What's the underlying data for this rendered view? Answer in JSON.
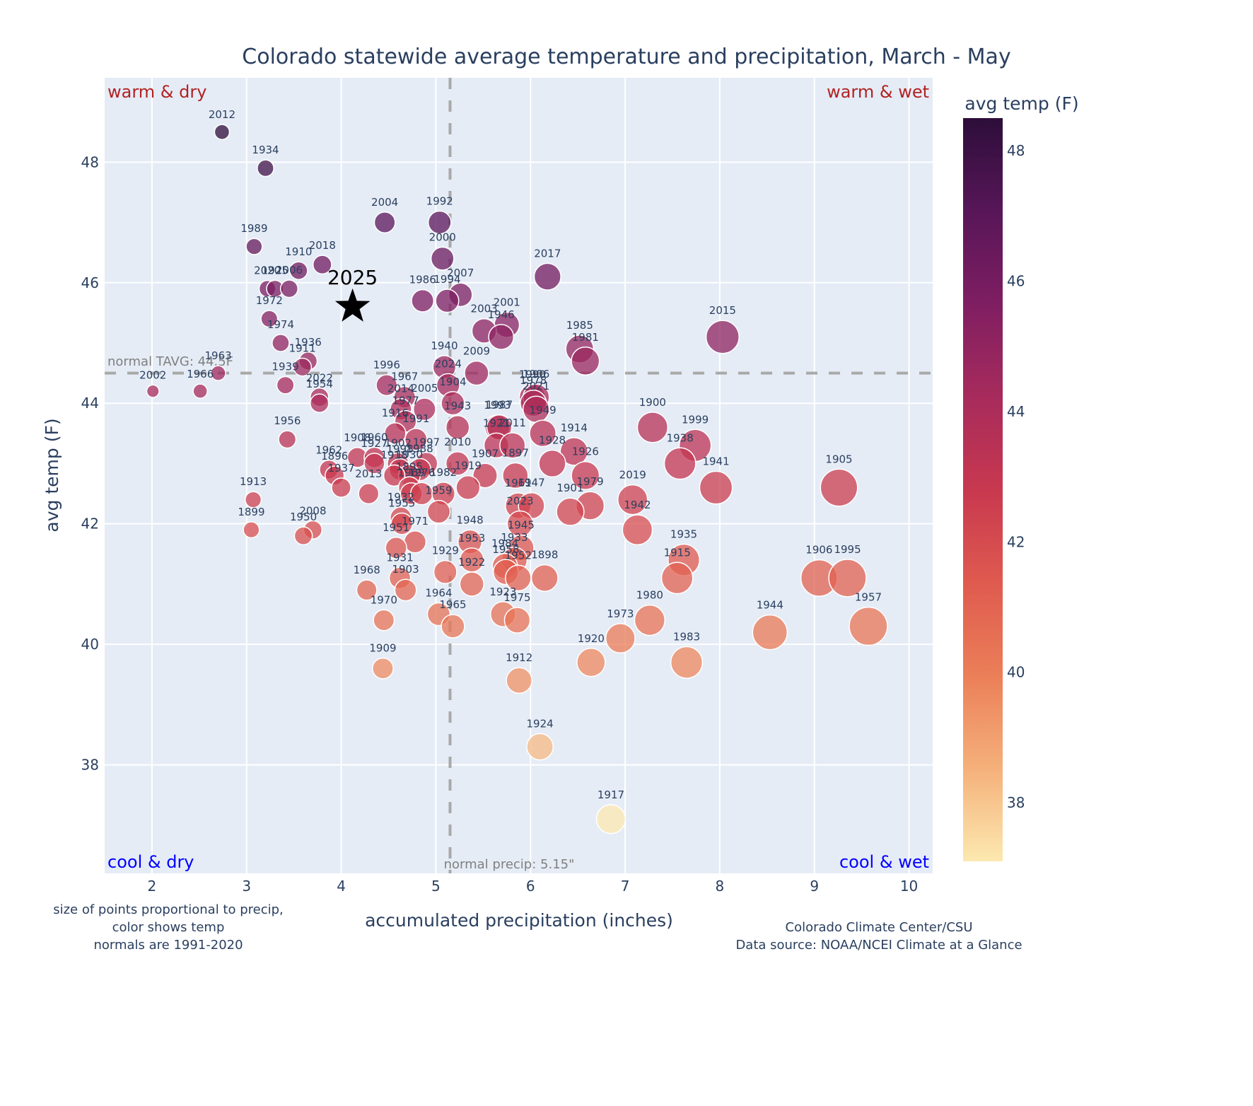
{
  "chart_data": {
    "type": "scatter",
    "title": "Colorado statewide average temperature and precipitation, March - May",
    "xlabel": "accumulated precipitation (inches)",
    "ylabel": "avg temp (F)",
    "xlim": [
      1.5,
      10.25
    ],
    "ylim": [
      36.2,
      49.4
    ],
    "x_ticks": [
      2,
      3,
      4,
      5,
      6,
      7,
      8,
      9,
      10
    ],
    "y_ticks": [
      38,
      40,
      42,
      44,
      46,
      48
    ],
    "grid": true,
    "colorbar": {
      "title": "avg temp (F)",
      "range": [
        37.1,
        48.5
      ],
      "ticks": [
        38,
        40,
        42,
        44,
        46,
        48
      ],
      "colorscale": [
        "#fce9b0",
        "#f5b07a",
        "#eb7f58",
        "#df5a4f",
        "#c8384f",
        "#a72b5c",
        "#7f1e62",
        "#571658",
        "#2d0e3a"
      ]
    },
    "reference_lines": {
      "normal_temp": {
        "value": 44.5,
        "label": "normal TAVG: 44.5F"
      },
      "normal_precip": {
        "value": 5.15,
        "label": "normal precip: 5.15\""
      }
    },
    "quadrant_labels": {
      "top_left": "warm & dry",
      "top_right": "warm & wet",
      "bottom_left": "cool & dry",
      "bottom_right": "cool & wet"
    },
    "highlight": {
      "year": "2025",
      "precip": 4.12,
      "temp": 45.6,
      "marker": "star"
    },
    "points": [
      {
        "year": "2012",
        "precip": 2.74,
        "temp": 48.5
      },
      {
        "year": "1934",
        "precip": 3.2,
        "temp": 47.9
      },
      {
        "year": "2004",
        "precip": 4.46,
        "temp": 47.0
      },
      {
        "year": "1992",
        "precip": 5.04,
        "temp": 47.0
      },
      {
        "year": "1989",
        "precip": 3.08,
        "temp": 46.6
      },
      {
        "year": "2000",
        "precip": 5.07,
        "temp": 46.4
      },
      {
        "year": "2018",
        "precip": 3.8,
        "temp": 46.3
      },
      {
        "year": "1910",
        "precip": 3.55,
        "temp": 46.2
      },
      {
        "year": "2017",
        "precip": 6.18,
        "temp": 46.1
      },
      {
        "year": "2020",
        "precip": 3.22,
        "temp": 45.9
      },
      {
        "year": "1925",
        "precip": 3.3,
        "temp": 45.9
      },
      {
        "year": "2006",
        "precip": 3.45,
        "temp": 45.9
      },
      {
        "year": "2007",
        "precip": 5.26,
        "temp": 45.8
      },
      {
        "year": "1986",
        "precip": 4.86,
        "temp": 45.7
      },
      {
        "year": "1994",
        "precip": 5.12,
        "temp": 45.7
      },
      {
        "year": "1972",
        "precip": 3.24,
        "temp": 45.4
      },
      {
        "year": "2001",
        "precip": 5.75,
        "temp": 45.3
      },
      {
        "year": "2003",
        "precip": 5.51,
        "temp": 45.2
      },
      {
        "year": "1946",
        "precip": 5.69,
        "temp": 45.1
      },
      {
        "year": "2015",
        "precip": 8.03,
        "temp": 45.1
      },
      {
        "year": "1974",
        "precip": 3.36,
        "temp": 45.0
      },
      {
        "year": "1985",
        "precip": 6.52,
        "temp": 44.9
      },
      {
        "year": "1936",
        "precip": 3.65,
        "temp": 44.7
      },
      {
        "year": "1981",
        "precip": 6.58,
        "temp": 44.7
      },
      {
        "year": "1911",
        "precip": 3.59,
        "temp": 44.6
      },
      {
        "year": "1940",
        "precip": 5.09,
        "temp": 44.6
      },
      {
        "year": "1963",
        "precip": 2.7,
        "temp": 44.5
      },
      {
        "year": "2009",
        "precip": 5.43,
        "temp": 44.5
      },
      {
        "year": "1996",
        "precip": 4.48,
        "temp": 44.3
      },
      {
        "year": "2024",
        "precip": 5.13,
        "temp": 44.3
      },
      {
        "year": "1939",
        "precip": 3.41,
        "temp": 44.3
      },
      {
        "year": "2002",
        "precip": 2.01,
        "temp": 44.2
      },
      {
        "year": "1966",
        "precip": 2.51,
        "temp": 44.2
      },
      {
        "year": "1990",
        "precip": 6.02,
        "temp": 44.1
      },
      {
        "year": "1906",
        "precip": 6.06,
        "temp": 44.1
      },
      {
        "year": "2022",
        "precip": 3.77,
        "temp": 44.1
      },
      {
        "year": "1967",
        "precip": 4.67,
        "temp": 44.1
      },
      {
        "year": "1978",
        "precip": 6.03,
        "temp": 44.0
      },
      {
        "year": "1954",
        "precip": 3.77,
        "temp": 44.0
      },
      {
        "year": "2014",
        "precip": 4.63,
        "temp": 43.9
      },
      {
        "year": "2005",
        "precip": 4.88,
        "temp": 43.9
      },
      {
        "year": "1904",
        "precip": 5.18,
        "temp": 44.0
      },
      {
        "year": "2021",
        "precip": 6.06,
        "temp": 43.9
      },
      {
        "year": "1977",
        "precip": 4.68,
        "temp": 43.7
      },
      {
        "year": "1943",
        "precip": 5.23,
        "temp": 43.6
      },
      {
        "year": "1949",
        "precip": 6.13,
        "temp": 43.5
      },
      {
        "year": "1916",
        "precip": 4.57,
        "temp": 43.5
      },
      {
        "year": "1991",
        "precip": 4.79,
        "temp": 43.4
      },
      {
        "year": "1993",
        "precip": 5.65,
        "temp": 43.6
      },
      {
        "year": "1987",
        "precip": 5.67,
        "temp": 43.6
      },
      {
        "year": "1956",
        "precip": 3.43,
        "temp": 43.4
      },
      {
        "year": "1914",
        "precip": 6.46,
        "temp": 43.2
      },
      {
        "year": "1921",
        "precip": 5.64,
        "temp": 43.3
      },
      {
        "year": "2011",
        "precip": 5.81,
        "temp": 43.3
      },
      {
        "year": "1928",
        "precip": 6.23,
        "temp": 43.0
      },
      {
        "year": "1908",
        "precip": 4.17,
        "temp": 43.1
      },
      {
        "year": "1960",
        "precip": 4.35,
        "temp": 43.1
      },
      {
        "year": "1902",
        "precip": 4.6,
        "temp": 43.0
      },
      {
        "year": "1997",
        "precip": 4.9,
        "temp": 43.0
      },
      {
        "year": "1927",
        "precip": 4.35,
        "temp": 43.0
      },
      {
        "year": "1998",
        "precip": 4.62,
        "temp": 42.9
      },
      {
        "year": "1988",
        "precip": 4.83,
        "temp": 42.9
      },
      {
        "year": "2010",
        "precip": 5.23,
        "temp": 43.0
      },
      {
        "year": "1930",
        "precip": 4.72,
        "temp": 42.8
      },
      {
        "year": "1926",
        "precip": 6.58,
        "temp": 42.8
      },
      {
        "year": "1962",
        "precip": 3.87,
        "temp": 42.9
      },
      {
        "year": "1896",
        "precip": 3.93,
        "temp": 42.8
      },
      {
        "year": "1918",
        "precip": 4.56,
        "temp": 42.8
      },
      {
        "year": "1907",
        "precip": 5.52,
        "temp": 42.8
      },
      {
        "year": "1897",
        "precip": 5.84,
        "temp": 42.8
      },
      {
        "year": "1919",
        "precip": 5.34,
        "temp": 42.6
      },
      {
        "year": "1937",
        "precip": 4.0,
        "temp": 42.6
      },
      {
        "year": "1895",
        "precip": 4.72,
        "temp": 42.6
      },
      {
        "year": "2013",
        "precip": 4.29,
        "temp": 42.5
      },
      {
        "year": "1969",
        "precip": 4.74,
        "temp": 42.5
      },
      {
        "year": "1976",
        "precip": 4.85,
        "temp": 42.5
      },
      {
        "year": "1982",
        "precip": 5.08,
        "temp": 42.5
      },
      {
        "year": "1961",
        "precip": 5.87,
        "temp": 42.3
      },
      {
        "year": "1947",
        "precip": 6.01,
        "temp": 42.3
      },
      {
        "year": "1979",
        "precip": 6.63,
        "temp": 42.3
      },
      {
        "year": "1901",
        "precip": 6.42,
        "temp": 42.2
      },
      {
        "year": "2019",
        "precip": 7.08,
        "temp": 42.4
      },
      {
        "year": "1905",
        "precip": 9.26,
        "temp": 42.6
      },
      {
        "year": "1900",
        "precip": 7.29,
        "temp": 43.6
      },
      {
        "year": "1999",
        "precip": 7.74,
        "temp": 43.3
      },
      {
        "year": "1938",
        "precip": 7.58,
        "temp": 43.0
      },
      {
        "year": "1941",
        "precip": 7.96,
        "temp": 42.6
      },
      {
        "year": "1959",
        "precip": 5.03,
        "temp": 42.2
      },
      {
        "year": "1932",
        "precip": 4.63,
        "temp": 42.1
      },
      {
        "year": "1955",
        "precip": 4.64,
        "temp": 42.0
      },
      {
        "year": "2023",
        "precip": 5.89,
        "temp": 42.0
      },
      {
        "year": "1913",
        "precip": 3.07,
        "temp": 42.4
      },
      {
        "year": "1942",
        "precip": 7.13,
        "temp": 41.9
      },
      {
        "year": "1971",
        "precip": 4.78,
        "temp": 41.7
      },
      {
        "year": "1951",
        "precip": 4.58,
        "temp": 41.6
      },
      {
        "year": "1899",
        "precip": 3.05,
        "temp": 41.9
      },
      {
        "year": "2008",
        "precip": 3.7,
        "temp": 41.9
      },
      {
        "year": "1950",
        "precip": 3.6,
        "temp": 41.8
      },
      {
        "year": "1948",
        "precip": 5.36,
        "temp": 41.7
      },
      {
        "year": "1945",
        "precip": 5.9,
        "temp": 41.6
      },
      {
        "year": "1953",
        "precip": 5.38,
        "temp": 41.4
      },
      {
        "year": "1933",
        "precip": 5.83,
        "temp": 41.4
      },
      {
        "year": "1935",
        "precip": 7.62,
        "temp": 41.4
      },
      {
        "year": "1984",
        "precip": 5.73,
        "temp": 41.3
      },
      {
        "year": "1929",
        "precip": 5.1,
        "temp": 41.2
      },
      {
        "year": "1958",
        "precip": 5.74,
        "temp": 41.2
      },
      {
        "year": "1952",
        "precip": 5.87,
        "temp": 41.1
      },
      {
        "year": "1922",
        "precip": 5.38,
        "temp": 41.0
      },
      {
        "year": "1931",
        "precip": 4.62,
        "temp": 41.1
      },
      {
        "year": "1898",
        "precip": 6.15,
        "temp": 41.1
      },
      {
        "year": "1915",
        "precip": 7.55,
        "temp": 41.1
      },
      {
        "year": "1906b",
        "label": "1906",
        "precip": 9.05,
        "temp": 41.1
      },
      {
        "year": "1995",
        "precip": 9.35,
        "temp": 41.1
      },
      {
        "year": "1903",
        "precip": 4.68,
        "temp": 40.9
      },
      {
        "year": "1968",
        "precip": 4.27,
        "temp": 40.9
      },
      {
        "year": "1923",
        "precip": 5.71,
        "temp": 40.5
      },
      {
        "year": "1975",
        "precip": 5.86,
        "temp": 40.4
      },
      {
        "year": "1964",
        "precip": 5.03,
        "temp": 40.5
      },
      {
        "year": "1965",
        "precip": 5.18,
        "temp": 40.3
      },
      {
        "year": "1970",
        "precip": 4.45,
        "temp": 40.4
      },
      {
        "year": "1980",
        "precip": 7.26,
        "temp": 40.4
      },
      {
        "year": "1973",
        "precip": 6.95,
        "temp": 40.1
      },
      {
        "year": "1944",
        "precip": 8.53,
        "temp": 40.2
      },
      {
        "year": "1957",
        "precip": 9.57,
        "temp": 40.3
      },
      {
        "year": "1920",
        "precip": 6.64,
        "temp": 39.7
      },
      {
        "year": "1983",
        "precip": 7.65,
        "temp": 39.7
      },
      {
        "year": "1909",
        "precip": 4.44,
        "temp": 39.6
      },
      {
        "year": "1912",
        "precip": 5.88,
        "temp": 39.4
      },
      {
        "year": "1924",
        "precip": 6.1,
        "temp": 38.3
      },
      {
        "year": "1917",
        "precip": 6.85,
        "temp": 37.1
      }
    ],
    "annotations": {
      "left_note": [
        "size of points proportional to precip,",
        "color shows temp",
        "normals are 1991-2020"
      ],
      "right_note": [
        "Colorado Climate Center/CSU",
        "Data source: NOAA/NCEI Climate at a Glance"
      ]
    }
  }
}
